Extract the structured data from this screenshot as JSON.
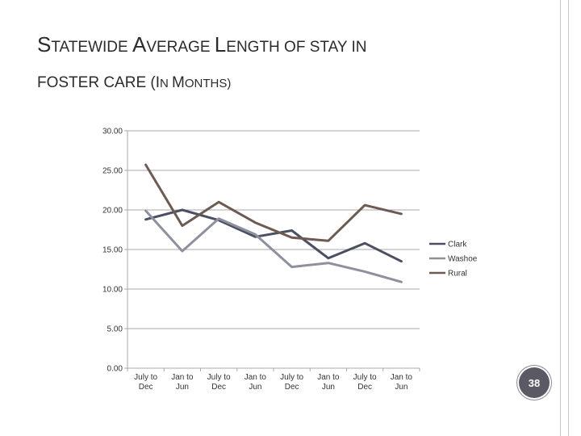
{
  "slide": {
    "title_line1": {
      "s1": "S",
      "w1": "TATEWIDE ",
      "a": "A",
      "w2": "VERAGE ",
      "l": "L",
      "w3": "ENGTH OF STAY IN"
    },
    "title_line2": {
      "w1": "FOSTER CARE (",
      "i": "I",
      "w2": "N ",
      "m": "M",
      "w3": "ONTHS)"
    },
    "page_number": "38"
  },
  "chart_data": {
    "type": "line",
    "categories": [
      [
        "July to",
        "Dec"
      ],
      [
        "Jan to",
        "Jun"
      ],
      [
        "July to",
        "Dec"
      ],
      [
        "Jan to",
        "Jun"
      ],
      [
        "July to",
        "Dec"
      ],
      [
        "Jan to",
        "Jun"
      ],
      [
        "July to",
        "Dec"
      ],
      [
        "Jan to",
        "Jun"
      ]
    ],
    "y_ticks": [
      "0.00",
      "5.00",
      "10.00",
      "15.00",
      "20.00",
      "25.00",
      "30.00"
    ],
    "ylim": [
      0,
      30
    ],
    "grid": true,
    "legend_position": "right",
    "series": [
      {
        "name": "Clark",
        "color": "#4a4f62",
        "values": [
          18.8,
          20.0,
          18.7,
          16.6,
          17.4,
          13.9,
          15.8,
          13.5
        ]
      },
      {
        "name": "Washoe",
        "color": "#8e909e",
        "values": [
          19.9,
          14.8,
          18.9,
          16.9,
          12.8,
          13.3,
          12.2,
          10.9
        ]
      },
      {
        "name": "Rural",
        "color": "#6d5a52",
        "values": [
          25.7,
          18.0,
          21.0,
          18.4,
          16.5,
          16.1,
          20.6,
          19.5
        ]
      }
    ]
  }
}
